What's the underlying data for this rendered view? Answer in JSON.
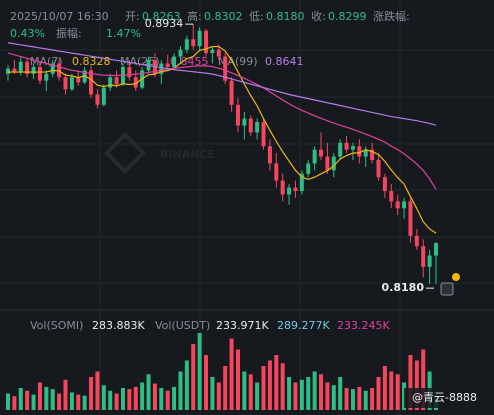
{
  "header": {
    "time": "2025/10/07 16:30",
    "open_label": "开:",
    "open": "0.8263",
    "high_label": "高:",
    "high": "0.8302",
    "low_label": "低:",
    "low": "0.8180",
    "close_label": "收:",
    "close": "0.8299",
    "change_label": "涨跌幅:",
    "change": "0.43%",
    "amplitude_label": "振幅:",
    "amplitude": "1.47%"
  },
  "chart_data": {
    "type": "candlestick",
    "watermark": "BINANCE",
    "open": [
      0.879,
      0.8805,
      0.8795,
      0.8825,
      0.879,
      0.881,
      0.877,
      0.879,
      0.882,
      0.878,
      0.8745,
      0.878,
      0.8765,
      0.88,
      0.873,
      0.87,
      0.875,
      0.878,
      0.876,
      0.881,
      0.878,
      0.875,
      0.88,
      0.883,
      0.879,
      0.882,
      0.881,
      0.884,
      0.886,
      0.889,
      0.887,
      0.8915,
      0.885,
      0.886,
      0.884,
      0.877,
      0.87,
      0.864,
      0.866,
      0.862,
      0.865,
      0.858,
      0.853,
      0.848,
      0.844,
      0.846,
      0.845,
      0.85,
      0.853,
      0.857,
      0.855,
      0.851,
      0.855,
      0.859,
      0.857,
      0.858,
      0.855,
      0.857,
      0.854,
      0.849,
      0.845,
      0.842,
      0.84,
      0.842,
      0.832,
      0.829,
      0.823,
      0.8263
    ],
    "high": [
      0.8815,
      0.883,
      0.884,
      0.8835,
      0.882,
      0.8825,
      0.88,
      0.883,
      0.8835,
      0.879,
      0.879,
      0.88,
      0.881,
      0.8815,
      0.8745,
      0.876,
      0.879,
      0.88,
      0.882,
      0.883,
      0.88,
      0.881,
      0.884,
      0.885,
      0.883,
      0.8845,
      0.885,
      0.887,
      0.89,
      0.8934,
      0.8925,
      0.892,
      0.887,
      0.8875,
      0.885,
      0.878,
      0.872,
      0.868,
      0.867,
      0.866,
      0.866,
      0.86,
      0.856,
      0.85,
      0.847,
      0.848,
      0.851,
      0.854,
      0.858,
      0.862,
      0.859,
      0.856,
      0.86,
      0.861,
      0.859,
      0.86,
      0.858,
      0.859,
      0.856,
      0.85,
      0.847,
      0.844,
      0.843,
      0.843,
      0.834,
      0.831,
      0.828,
      0.8302
    ],
    "low": [
      0.877,
      0.879,
      0.8785,
      0.878,
      0.8775,
      0.876,
      0.874,
      0.878,
      0.877,
      0.873,
      0.874,
      0.8755,
      0.876,
      0.872,
      0.869,
      0.8695,
      0.874,
      0.875,
      0.8755,
      0.877,
      0.874,
      0.8745,
      0.879,
      0.878,
      0.876,
      0.88,
      0.88,
      0.882,
      0.885,
      0.886,
      0.886,
      0.884,
      0.882,
      0.883,
      0.876,
      0.868,
      0.862,
      0.86,
      0.861,
      0.86,
      0.857,
      0.851,
      0.846,
      0.842,
      0.841,
      0.843,
      0.844,
      0.849,
      0.851,
      0.854,
      0.85,
      0.849,
      0.854,
      0.856,
      0.854,
      0.853,
      0.852,
      0.853,
      0.848,
      0.843,
      0.84,
      0.838,
      0.837,
      0.83,
      0.828,
      0.82,
      0.818,
      0.818
    ],
    "close": [
      0.8805,
      0.8795,
      0.8825,
      0.879,
      0.881,
      0.877,
      0.879,
      0.882,
      0.878,
      0.8745,
      0.878,
      0.8765,
      0.88,
      0.873,
      0.87,
      0.875,
      0.878,
      0.876,
      0.881,
      0.878,
      0.875,
      0.88,
      0.883,
      0.879,
      0.882,
      0.881,
      0.884,
      0.886,
      0.889,
      0.887,
      0.8915,
      0.885,
      0.886,
      0.884,
      0.877,
      0.87,
      0.864,
      0.866,
      0.862,
      0.865,
      0.858,
      0.853,
      0.848,
      0.844,
      0.846,
      0.845,
      0.85,
      0.853,
      0.857,
      0.855,
      0.851,
      0.855,
      0.859,
      0.857,
      0.858,
      0.855,
      0.857,
      0.854,
      0.849,
      0.845,
      0.842,
      0.84,
      0.842,
      0.832,
      0.829,
      0.823,
      0.8263,
      0.8299
    ],
    "up_color": "#2ebd85",
    "down_color": "#f6465d",
    "ylim": [
      0.8105,
      0.9004
    ],
    "max_label": "0.8934",
    "min_label": "0.8180",
    "ma": [
      {
        "name": "MA(7)",
        "label": "0.8328",
        "color": "#f0b90b",
        "values": [
          0.8795,
          0.8795,
          0.8795,
          0.8795,
          0.8795,
          0.8795,
          0.8795,
          0.88,
          0.8798,
          0.8786,
          0.8784,
          0.8779,
          0.8784,
          0.8774,
          0.8757,
          0.8753,
          0.8758,
          0.8755,
          0.8761,
          0.8759,
          0.8761,
          0.8776,
          0.8787,
          0.8789,
          0.8797,
          0.8799,
          0.8806,
          0.8821,
          0.8834,
          0.884,
          0.8858,
          0.8862,
          0.8869,
          0.8869,
          0.8856,
          0.8829,
          0.8796,
          0.876,
          0.8727,
          0.8697,
          0.866,
          0.8626,
          0.8594,
          0.8564,
          0.8537,
          0.851,
          0.8491,
          0.8484,
          0.849,
          0.85,
          0.8509,
          0.8523,
          0.8543,
          0.8553,
          0.856,
          0.8561,
          0.857,
          0.8564,
          0.8556,
          0.8536,
          0.8511,
          0.8489,
          0.847,
          0.8434,
          0.8399,
          0.8361,
          0.834,
          0.8328
        ]
      },
      {
        "name": "MA(25)",
        "label": "0.8455",
        "color": "#e0409f",
        "values": [
          0.885,
          0.8845,
          0.884,
          0.8835,
          0.883,
          0.8825,
          0.882,
          0.8815,
          0.881,
          0.8805,
          0.88,
          0.8797,
          0.8794,
          0.8791,
          0.8788,
          0.8786,
          0.8785,
          0.8785,
          0.8786,
          0.8787,
          0.8789,
          0.8791,
          0.8794,
          0.8797,
          0.88,
          0.8803,
          0.8806,
          0.8808,
          0.881,
          0.8812,
          0.8813,
          0.8813,
          0.8811,
          0.8806,
          0.88,
          0.8793,
          0.8785,
          0.8777,
          0.8768,
          0.8759,
          0.8749,
          0.8738,
          0.8726,
          0.8714,
          0.8703,
          0.8693,
          0.8684,
          0.8676,
          0.8668,
          0.8661,
          0.8654,
          0.8647,
          0.8641,
          0.8635,
          0.8629,
          0.8622,
          0.8615,
          0.8608,
          0.86,
          0.8592,
          0.858,
          0.857,
          0.8558,
          0.8544,
          0.8528,
          0.851,
          0.8485,
          0.8455
        ]
      },
      {
        "name": "MA(99)",
        "label": "0.8641",
        "color": "#b57be6",
        "values": [
          0.888,
          0.8877,
          0.8874,
          0.8871,
          0.8868,
          0.8865,
          0.8862,
          0.8859,
          0.8856,
          0.8853,
          0.885,
          0.8847,
          0.8844,
          0.8841,
          0.8838,
          0.8835,
          0.8832,
          0.8829,
          0.8826,
          0.8823,
          0.882,
          0.8817,
          0.8814,
          0.8811,
          0.8808,
          0.8805,
          0.8802,
          0.88,
          0.8798,
          0.8796,
          0.8794,
          0.8792,
          0.8789,
          0.8785,
          0.878,
          0.8775,
          0.877,
          0.8765,
          0.876,
          0.8755,
          0.875,
          0.8745,
          0.874,
          0.8735,
          0.873,
          0.8726,
          0.8722,
          0.8718,
          0.8714,
          0.871,
          0.8706,
          0.8702,
          0.8698,
          0.8694,
          0.869,
          0.8686,
          0.8682,
          0.8678,
          0.8674,
          0.867,
          0.8666,
          0.8663,
          0.866,
          0.8657,
          0.8654,
          0.865,
          0.8646,
          0.8641
        ]
      }
    ],
    "volume": {
      "name": "Vol(SOMI)",
      "label": "283.883K",
      "usdt_name": "Vol(USDT)",
      "usdt_label": "233.971K",
      "ma_labels": [
        {
          "label": "289.277K",
          "color": "#6ecbe8"
        },
        {
          "label": "233.245K",
          "color": "#e0409f"
        }
      ],
      "ylim": [
        0,
        1600000
      ],
      "values": [
        300000,
        250000,
        400000,
        350000,
        280000,
        500000,
        420000,
        380000,
        300000,
        550000,
        320000,
        280000,
        260000,
        600000,
        700000,
        450000,
        350000,
        300000,
        400000,
        380000,
        420000,
        500000,
        650000,
        480000,
        400000,
        350000,
        420000,
        700000,
        900000,
        1200000,
        1400000,
        1000000,
        600000,
        500000,
        800000,
        1300000,
        1100000,
        700000,
        650000,
        500000,
        800000,
        900000,
        1000000,
        850000,
        600000,
        500000,
        550000,
        600000,
        700000,
        650000,
        500000,
        450000,
        600000,
        400000,
        380000,
        420000,
        350000,
        400000,
        600000,
        800000,
        700000,
        650000,
        500000,
        1000000,
        900000,
        1100000,
        700000,
        283883
      ]
    }
  },
  "footer": "@青云-8888"
}
